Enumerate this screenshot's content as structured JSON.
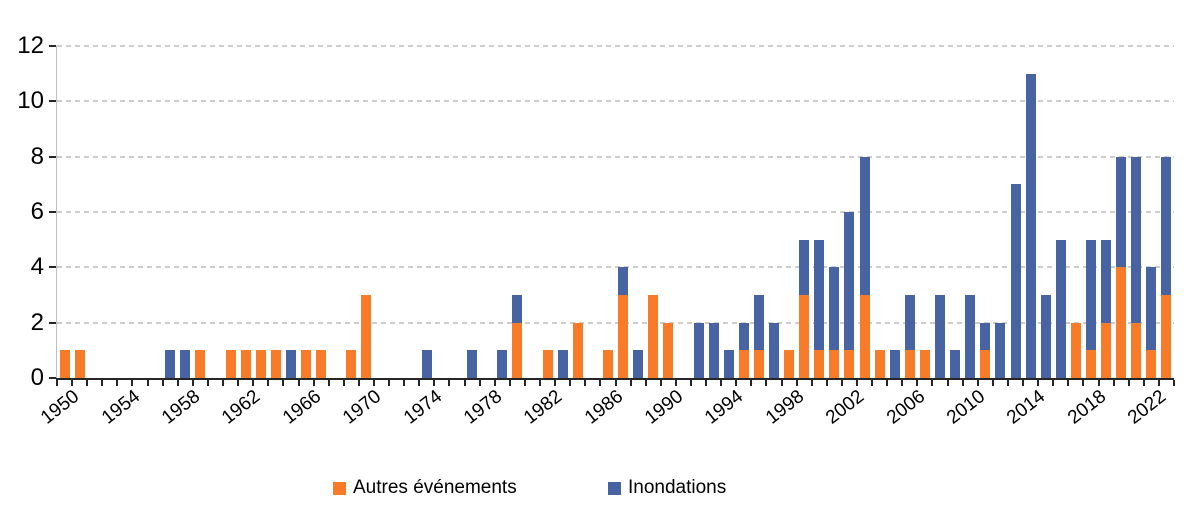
{
  "chart_data": {
    "type": "bar",
    "stacked": true,
    "title": "",
    "categories": [
      1950,
      1951,
      1952,
      1953,
      1954,
      1955,
      1956,
      1957,
      1958,
      1959,
      1960,
      1961,
      1962,
      1963,
      1964,
      1965,
      1966,
      1967,
      1968,
      1969,
      1970,
      1971,
      1972,
      1973,
      1974,
      1975,
      1976,
      1977,
      1978,
      1979,
      1980,
      1981,
      1982,
      1983,
      1984,
      1985,
      1986,
      1987,
      1988,
      1989,
      1990,
      1991,
      1992,
      1993,
      1994,
      1995,
      1996,
      1997,
      1998,
      1999,
      2000,
      2001,
      2002,
      2003,
      2004,
      2005,
      2006,
      2007,
      2008,
      2009,
      2010,
      2011,
      2012,
      2013,
      2014,
      2015,
      2016,
      2017,
      2018,
      2019,
      2020,
      2021,
      2022,
      2023
    ],
    "series": [
      {
        "name": "Autres événements",
        "color": "#F77B29",
        "values": [
          1,
          1,
          0,
          0,
          0,
          0,
          0,
          0,
          0,
          1,
          0,
          1,
          1,
          1,
          1,
          0,
          1,
          1,
          0,
          1,
          3,
          0,
          0,
          0,
          0,
          0,
          0,
          0,
          0,
          0,
          2,
          0,
          1,
          0,
          2,
          0,
          1,
          3,
          0,
          3,
          2,
          0,
          0,
          0,
          0,
          1,
          1,
          0,
          1,
          3,
          1,
          1,
          1,
          3,
          1,
          0,
          1,
          1,
          0,
          0,
          0,
          1,
          0,
          0,
          0,
          0,
          0,
          2,
          1,
          2,
          4,
          2,
          1,
          3
        ]
      },
      {
        "name": "Inondations",
        "color": "#4863A2",
        "values": [
          0,
          0,
          0,
          0,
          0,
          0,
          0,
          1,
          1,
          0,
          0,
          0,
          0,
          0,
          0,
          1,
          0,
          0,
          0,
          0,
          0,
          0,
          0,
          0,
          1,
          0,
          0,
          1,
          0,
          1,
          1,
          0,
          0,
          1,
          0,
          0,
          0,
          1,
          1,
          0,
          0,
          0,
          2,
          2,
          1,
          1,
          2,
          2,
          0,
          2,
          4,
          3,
          5,
          5,
          0,
          1,
          2,
          0,
          3,
          1,
          3,
          1,
          2,
          7,
          11,
          3,
          5,
          0,
          4,
          3,
          4,
          6,
          3,
          5
        ]
      }
    ],
    "x_axis": {
      "tick_labels": [
        "1950",
        "1954",
        "1958",
        "1962",
        "1966",
        "1970",
        "1974",
        "1978",
        "1982",
        "1986",
        "1990",
        "1994",
        "1998",
        "2002",
        "2006",
        "2010",
        "2014",
        "2018",
        "2022"
      ],
      "label_every_n_years": 4,
      "minor_tick_every_year": true
    },
    "y_axis": {
      "ticks": [
        "0",
        "2",
        "4",
        "6",
        "8",
        "10",
        "12"
      ],
      "min": 0,
      "max": 12
    },
    "grid": {
      "horizontal": true,
      "style": "dashed",
      "color": "#CDCDCD"
    },
    "legend": {
      "position": "bottom",
      "items": [
        {
          "label": "Autres événements",
          "color": "#F77B29"
        },
        {
          "label": "Inondations",
          "color": "#4863A2"
        }
      ]
    }
  }
}
